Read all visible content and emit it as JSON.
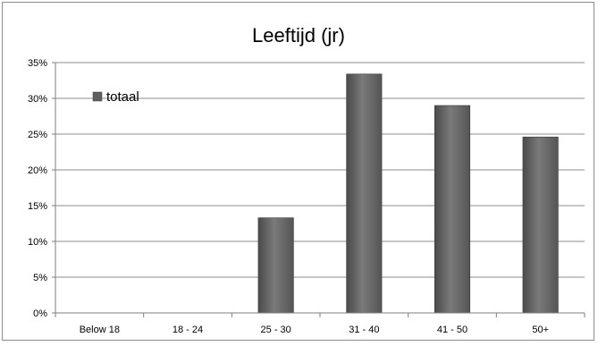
{
  "chart_data": {
    "type": "bar",
    "title": "Leeftijd (jr)",
    "xlabel": "",
    "ylabel": "",
    "categories": [
      "Below 18",
      "18 - 24",
      "25 - 30",
      "31 - 40",
      "41 - 50",
      "50+"
    ],
    "series": [
      {
        "name": "totaal",
        "values": [
          0,
          0,
          13.3,
          33.4,
          29.0,
          24.6
        ]
      }
    ],
    "ylim": [
      0,
      35
    ],
    "yticks": [
      0,
      5,
      10,
      15,
      20,
      25,
      30,
      35
    ],
    "ytick_labels": [
      "0%",
      "5%",
      "10%",
      "15%",
      "20%",
      "25%",
      "30%",
      "35%"
    ],
    "grid": true,
    "legend_position": "top-left",
    "bar_color": "#6a6a6a",
    "legend_marker_color": "#5f5f5f"
  }
}
